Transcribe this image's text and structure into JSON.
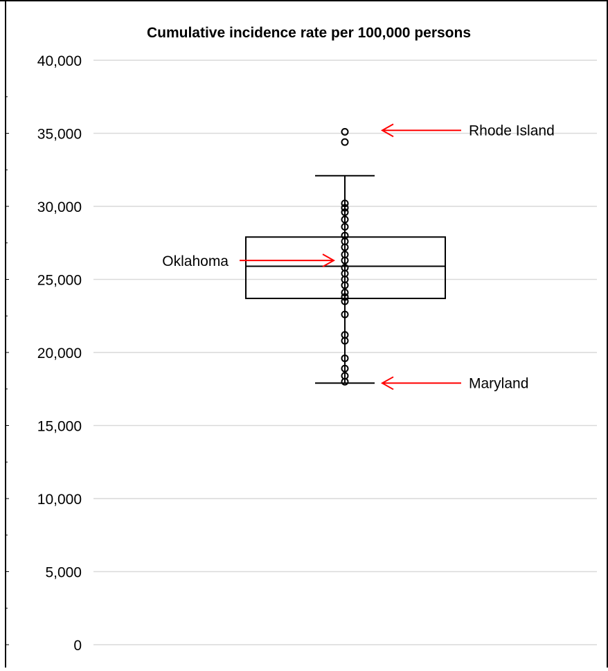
{
  "chart_data": {
    "type": "box",
    "title": "Cumulative incidence rate per 100,000 persons",
    "xlabel": "",
    "ylabel": "",
    "ylim": [
      0,
      40000
    ],
    "yticks": [
      0,
      5000,
      10000,
      15000,
      20000,
      25000,
      30000,
      35000,
      40000
    ],
    "ytick_labels": [
      "0",
      "5,000",
      "10,000",
      "15,000",
      "20,000",
      "25,000",
      "30,000",
      "35,000",
      "40,000"
    ],
    "grid": true,
    "box": {
      "whisker_low": 17900,
      "q1": 23700,
      "median": 25900,
      "q3": 27900,
      "whisker_high": 32100
    },
    "points": [
      35100,
      34400,
      30200,
      29900,
      29600,
      29100,
      28600,
      28000,
      27600,
      27200,
      26700,
      26300,
      25800,
      25400,
      25000,
      24600,
      24100,
      23800,
      23500,
      22600,
      21200,
      20800,
      19600,
      18900,
      18400,
      18000
    ],
    "outlier_color": "#000000",
    "arrow_color": "#ff0000",
    "annotations": [
      {
        "text": "Rhode Island",
        "y": 35200,
        "side": "right"
      },
      {
        "text": "Oklahoma",
        "y": 26300,
        "side": "left"
      },
      {
        "text": "Maryland",
        "y": 17900,
        "side": "right"
      }
    ]
  }
}
